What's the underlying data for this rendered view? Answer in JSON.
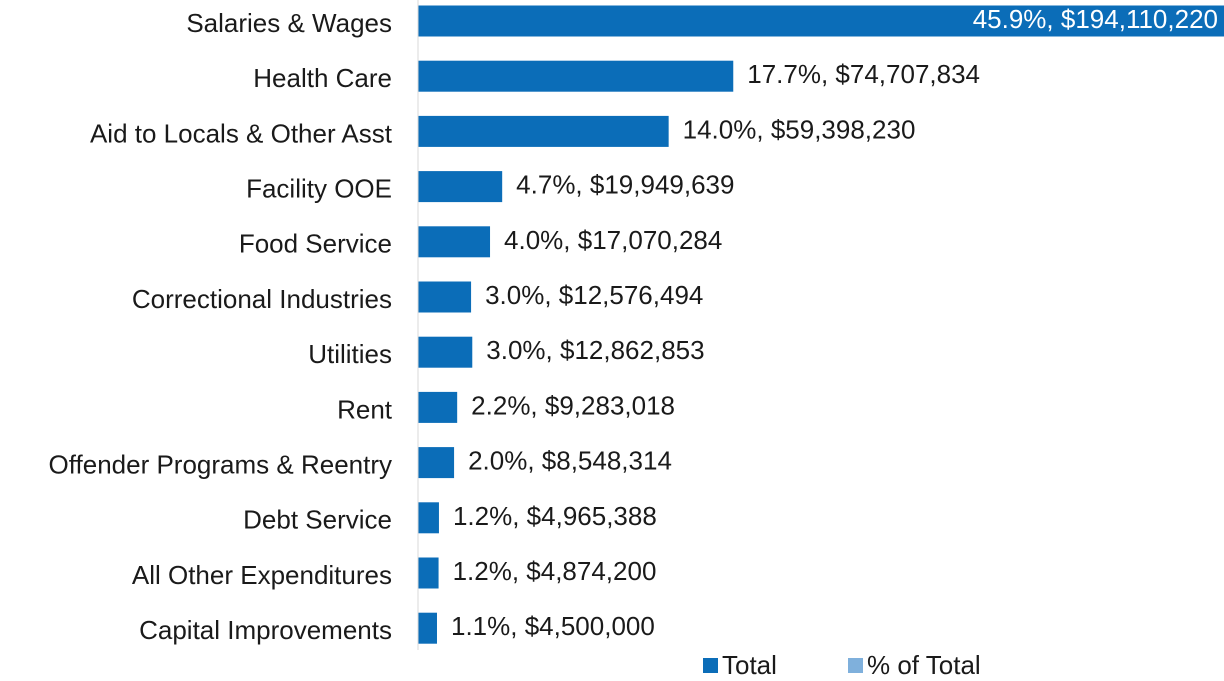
{
  "chart_data": {
    "type": "bar",
    "orientation": "horizontal",
    "categories": [
      "Salaries & Wages",
      "Health Care",
      "Aid to Locals & Other Asst",
      "Facility OOE",
      "Food Service",
      "Correctional Industries",
      "Utilities",
      "Rent",
      "Offender Programs & Reentry",
      "Debt Service",
      "All Other Expenditures",
      "Capital Improvements"
    ],
    "series": [
      {
        "name": "Total",
        "color": "#0b6db8",
        "values": [
          194110220,
          74707834,
          59398230,
          19949639,
          17070284,
          12576494,
          12862853,
          9283018,
          8548314,
          4965388,
          4874200,
          4500000
        ],
        "value_labels": [
          "$194,110,220",
          "$74,707,834",
          "$59,398,230",
          "$19,949,639",
          "$17,070,284",
          "$12,576,494",
          "$12,862,853",
          "$9,283,018",
          "$8,548,314",
          "$4,965,388",
          "$4,874,200",
          "$4,500,000"
        ]
      },
      {
        "name": "% of Total",
        "color": "#7fb0dc",
        "values": [
          45.9,
          17.7,
          14.0,
          4.7,
          4.0,
          3.0,
          3.0,
          2.2,
          2.0,
          1.2,
          1.2,
          1.1
        ],
        "value_labels": [
          "45.9%, ",
          "17.7%, ",
          "14.0%, ",
          "4.7%, ",
          "4.0%, ",
          "3.0%, ",
          "3.0%, ",
          "2.2%, ",
          "2.0%, ",
          "1.2%, ",
          "1.2%, ",
          "1.1%, "
        ]
      }
    ],
    "xlim": [
      0,
      191000000
    ]
  }
}
